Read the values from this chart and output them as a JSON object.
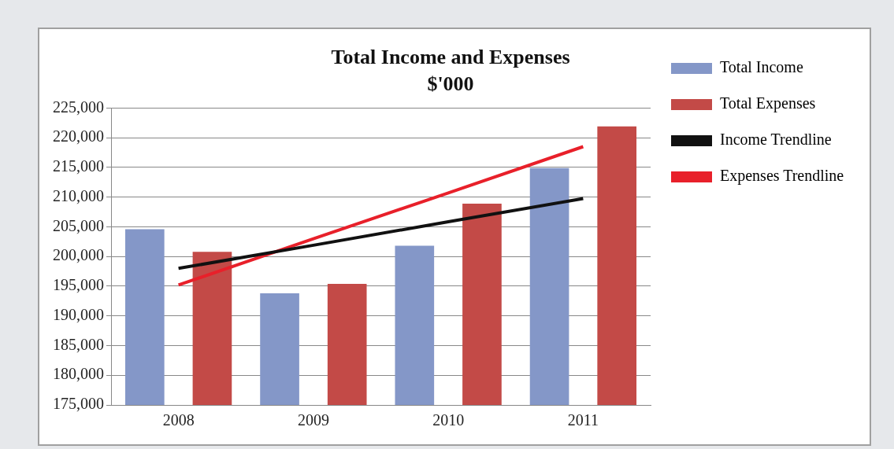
{
  "chart_data": {
    "type": "bar",
    "title": "Total Income and Expenses",
    "subtitle": "$'000",
    "categories": [
      "2008",
      "2009",
      "2010",
      "2011"
    ],
    "series": [
      {
        "name": "Total Income",
        "color": "#8497c8",
        "values": [
          204600,
          193800,
          201800,
          214900
        ]
      },
      {
        "name": "Total Expenses",
        "color": "#c34a47",
        "values": [
          200800,
          195400,
          208900,
          221900
        ]
      },
      {
        "name": "Income Trendline",
        "type": "line",
        "color": "#111111",
        "values": [
          198000,
          201900,
          205850,
          209750
        ]
      },
      {
        "name": "Expenses Trendline",
        "type": "line",
        "color": "#e8202a",
        "values": [
          195200,
          203000,
          210700,
          218500
        ]
      }
    ],
    "ylim": [
      175000,
      225000
    ],
    "yticks": [
      {
        "value": 175000,
        "label": "175,000"
      },
      {
        "value": 180000,
        "label": "180,000"
      },
      {
        "value": 185000,
        "label": "185,000"
      },
      {
        "value": 190000,
        "label": "190,000"
      },
      {
        "value": 195000,
        "label": "195,000"
      },
      {
        "value": 200000,
        "label": "200,000"
      },
      {
        "value": 205000,
        "label": "205,000"
      },
      {
        "value": 210000,
        "label": "210,000"
      },
      {
        "value": 215000,
        "label": "215,000"
      },
      {
        "value": 220000,
        "label": "220,000"
      },
      {
        "value": 225000,
        "label": "225,000"
      }
    ],
    "grid": "y",
    "legend": "right",
    "marker": "none"
  }
}
